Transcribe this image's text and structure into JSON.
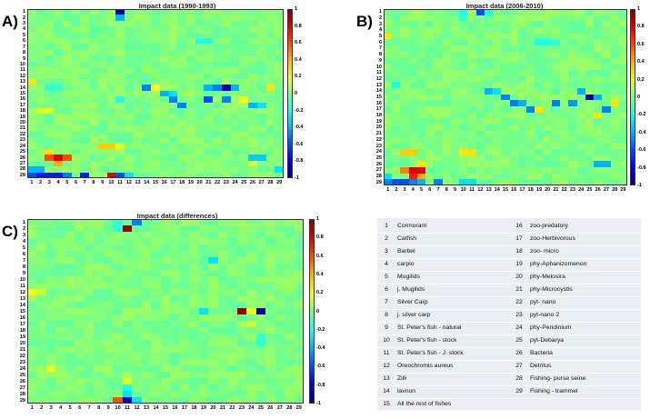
{
  "chart_data": [
    {
      "type": "heatmap",
      "panel_letter": "A)",
      "title": "Impact data (1990-1993)",
      "x_ticks": [
        "1",
        "2",
        "3",
        "4",
        "5",
        "6",
        "7",
        "8",
        "9",
        "10",
        "11",
        "12",
        "13",
        "14",
        "15",
        "16",
        "17",
        "18",
        "19",
        "20",
        "21",
        "22",
        "23",
        "24",
        "25",
        "26",
        "27",
        "28",
        "29"
      ],
      "y_ticks": [
        "1",
        "2",
        "3",
        "4",
        "5",
        "6",
        "7",
        "8",
        "9",
        "10",
        "11",
        "12",
        "13",
        "14",
        "15",
        "16",
        "17",
        "18",
        "19",
        "20",
        "21",
        "22",
        "23",
        "24",
        "25",
        "26",
        "27",
        "28",
        "29"
      ],
      "colorbar_ticks": [
        "1",
        "0.8",
        "0.6",
        "0.4",
        "0.2",
        "0",
        "-0.2",
        "-0.4",
        "-0.6",
        "-0.8",
        "-1"
      ],
      "zlim": [
        -1,
        1
      ],
      "background_value": 0,
      "cells": [
        {
          "row": 1,
          "col": 11,
          "value": -0.9
        },
        {
          "row": 2,
          "col": 11,
          "value": -0.4
        },
        {
          "row": 6,
          "col": 20,
          "value": -0.2
        },
        {
          "row": 6,
          "col": 21,
          "value": -0.2
        },
        {
          "row": 13,
          "col": 1,
          "value": 0.3
        },
        {
          "row": 14,
          "col": 3,
          "value": -0.15
        },
        {
          "row": 14,
          "col": 4,
          "value": -0.15
        },
        {
          "row": 14,
          "col": 14,
          "value": -0.5
        },
        {
          "row": 14,
          "col": 15,
          "value": 0.25
        },
        {
          "row": 14,
          "col": 21,
          "value": -0.4
        },
        {
          "row": 14,
          "col": 22,
          "value": -0.5
        },
        {
          "row": 14,
          "col": 23,
          "value": -0.9
        },
        {
          "row": 14,
          "col": 24,
          "value": -0.4
        },
        {
          "row": 14,
          "col": 28,
          "value": 0.3
        },
        {
          "row": 15,
          "col": 16,
          "value": -0.4
        },
        {
          "row": 15,
          "col": 17,
          "value": -0.3
        },
        {
          "row": 16,
          "col": 11,
          "value": -0.2
        },
        {
          "row": 16,
          "col": 17,
          "value": -0.5
        },
        {
          "row": 16,
          "col": 21,
          "value": -0.6
        },
        {
          "row": 16,
          "col": 23,
          "value": -0.5
        },
        {
          "row": 16,
          "col": 25,
          "value": 0.25
        },
        {
          "row": 17,
          "col": 18,
          "value": -0.5
        },
        {
          "row": 17,
          "col": 26,
          "value": -0.4
        },
        {
          "row": 17,
          "col": 27,
          "value": -0.3
        },
        {
          "row": 18,
          "col": 2,
          "value": 0.2
        },
        {
          "row": 18,
          "col": 3,
          "value": 0.2
        },
        {
          "row": 24,
          "col": 9,
          "value": 0.35
        },
        {
          "row": 24,
          "col": 10,
          "value": 0.35
        },
        {
          "row": 24,
          "col": 11,
          "value": 0.2
        },
        {
          "row": 25,
          "col": 3,
          "value": 0.3
        },
        {
          "row": 26,
          "col": 3,
          "value": 0.6
        },
        {
          "row": 26,
          "col": 4,
          "value": 0.8
        },
        {
          "row": 26,
          "col": 5,
          "value": 0.6
        },
        {
          "row": 26,
          "col": 26,
          "value": -0.35
        },
        {
          "row": 26,
          "col": 27,
          "value": -0.35
        },
        {
          "row": 27,
          "col": 4,
          "value": 0.4
        },
        {
          "row": 27,
          "col": 26,
          "value": 0.2
        },
        {
          "row": 28,
          "col": 1,
          "value": -0.4
        },
        {
          "row": 28,
          "col": 2,
          "value": -0.4
        },
        {
          "row": 28,
          "col": 29,
          "value": -0.3
        },
        {
          "row": 29,
          "col": 1,
          "value": -0.6
        },
        {
          "row": 29,
          "col": 2,
          "value": -0.7
        },
        {
          "row": 29,
          "col": 3,
          "value": -0.7
        },
        {
          "row": 29,
          "col": 4,
          "value": -0.7
        },
        {
          "row": 29,
          "col": 5,
          "value": -0.5
        },
        {
          "row": 29,
          "col": 7,
          "value": -0.7
        },
        {
          "row": 29,
          "col": 10,
          "value": 0.8
        },
        {
          "row": 29,
          "col": 11,
          "value": -0.6
        },
        {
          "row": 29,
          "col": 12,
          "value": -0.3
        }
      ]
    },
    {
      "type": "heatmap",
      "panel_letter": "B)",
      "title": "Impact data (2006-2010)",
      "x_ticks": [
        "1",
        "2",
        "3",
        "4",
        "5",
        "6",
        "7",
        "8",
        "9",
        "10",
        "11",
        "12",
        "13",
        "14",
        "15",
        "16",
        "17",
        "18",
        "19",
        "20",
        "21",
        "22",
        "23",
        "24",
        "25",
        "26",
        "27",
        "28",
        "29"
      ],
      "y_ticks": [
        "1",
        "2",
        "3",
        "4",
        "5",
        "6",
        "7",
        "8",
        "9",
        "10",
        "11",
        "12",
        "13",
        "14",
        "15",
        "16",
        "17",
        "18",
        "19",
        "20",
        "21",
        "22",
        "23",
        "24",
        "25",
        "26",
        "27",
        "28",
        "29"
      ],
      "colorbar_ticks": [
        "1",
        "0.8",
        "0.6",
        "0.4",
        "0.2",
        "0",
        "-0.2",
        "-0.4",
        "-0.6",
        "-0.8",
        "-1"
      ],
      "zlim": [
        -1,
        1
      ],
      "background_value": 0,
      "cells": [
        {
          "row": 1,
          "col": 10,
          "value": -0.2
        },
        {
          "row": 1,
          "col": 12,
          "value": -0.6
        },
        {
          "row": 1,
          "col": 13,
          "value": -0.2
        },
        {
          "row": 2,
          "col": 10,
          "value": -0.15
        },
        {
          "row": 5,
          "col": 1,
          "value": 0.3
        },
        {
          "row": 6,
          "col": 19,
          "value": -0.2
        },
        {
          "row": 6,
          "col": 20,
          "value": -0.2
        },
        {
          "row": 6,
          "col": 21,
          "value": -0.15
        },
        {
          "row": 13,
          "col": 2,
          "value": -0.2
        },
        {
          "row": 14,
          "col": 13,
          "value": -0.4
        },
        {
          "row": 14,
          "col": 14,
          "value": -0.3
        },
        {
          "row": 14,
          "col": 24,
          "value": -0.4
        },
        {
          "row": 15,
          "col": 15,
          "value": -0.5
        },
        {
          "row": 15,
          "col": 25,
          "value": -0.9
        },
        {
          "row": 15,
          "col": 26,
          "value": -0.4
        },
        {
          "row": 16,
          "col": 16,
          "value": -0.5
        },
        {
          "row": 16,
          "col": 17,
          "value": -0.4
        },
        {
          "row": 16,
          "col": 21,
          "value": -0.5
        },
        {
          "row": 16,
          "col": 23,
          "value": -0.45
        },
        {
          "row": 16,
          "col": 28,
          "value": 0.3
        },
        {
          "row": 17,
          "col": 18,
          "value": -0.5
        },
        {
          "row": 17,
          "col": 19,
          "value": 0.3
        },
        {
          "row": 17,
          "col": 27,
          "value": -0.5
        },
        {
          "row": 18,
          "col": 26,
          "value": 0.3
        },
        {
          "row": 24,
          "col": 3,
          "value": 0.35
        },
        {
          "row": 24,
          "col": 4,
          "value": 0.35
        },
        {
          "row": 24,
          "col": 10,
          "value": 0.3
        },
        {
          "row": 24,
          "col": 11,
          "value": 0.3
        },
        {
          "row": 26,
          "col": 5,
          "value": 0.3
        },
        {
          "row": 26,
          "col": 26,
          "value": -0.4
        },
        {
          "row": 26,
          "col": 27,
          "value": -0.4
        },
        {
          "row": 27,
          "col": 4,
          "value": 0.8
        },
        {
          "row": 27,
          "col": 5,
          "value": 0.8
        },
        {
          "row": 27,
          "col": 3,
          "value": 0.5
        },
        {
          "row": 28,
          "col": 4,
          "value": 0.7
        },
        {
          "row": 28,
          "col": 5,
          "value": 0.4
        },
        {
          "row": 28,
          "col": 1,
          "value": -0.3
        },
        {
          "row": 29,
          "col": 1,
          "value": -0.5
        },
        {
          "row": 29,
          "col": 2,
          "value": -0.6
        },
        {
          "row": 29,
          "col": 3,
          "value": -0.6
        },
        {
          "row": 29,
          "col": 4,
          "value": -0.5
        },
        {
          "row": 29,
          "col": 5,
          "value": -0.4
        },
        {
          "row": 29,
          "col": 7,
          "value": -0.5
        },
        {
          "row": 29,
          "col": 10,
          "value": -0.3
        },
        {
          "row": 29,
          "col": 11,
          "value": -0.3
        }
      ]
    },
    {
      "type": "heatmap",
      "panel_letter": "C)",
      "title": "Impact data (differences)",
      "x_ticks": [
        "1",
        "2",
        "3",
        "4",
        "5",
        "6",
        "7",
        "8",
        "9",
        "10",
        "11",
        "12",
        "13",
        "14",
        "15",
        "16",
        "17",
        "18",
        "19",
        "20",
        "21",
        "22",
        "23",
        "24",
        "25",
        "26",
        "27",
        "28",
        "29"
      ],
      "y_ticks": [
        "1",
        "2",
        "3",
        "4",
        "5",
        "6",
        "7",
        "8",
        "9",
        "10",
        "11",
        "12",
        "13",
        "14",
        "15",
        "16",
        "17",
        "18",
        "19",
        "20",
        "21",
        "22",
        "23",
        "24",
        "25",
        "26",
        "27",
        "28",
        "29"
      ],
      "colorbar_ticks": [
        "1",
        "0.8",
        "0.6",
        "0.4",
        "0.2",
        "0",
        "-0.2",
        "-0.4",
        "-0.6",
        "-0.8",
        "-1"
      ],
      "zlim": [
        -1,
        1
      ],
      "background_value": 0,
      "cells": [
        {
          "row": 1,
          "col": 10,
          "value": -0.15
        },
        {
          "row": 1,
          "col": 12,
          "value": -0.5
        },
        {
          "row": 2,
          "col": 10,
          "value": -0.15
        },
        {
          "row": 2,
          "col": 11,
          "value": 0.95
        },
        {
          "row": 7,
          "col": 20,
          "value": -0.3
        },
        {
          "row": 12,
          "col": 1,
          "value": 0.25
        },
        {
          "row": 12,
          "col": 2,
          "value": 0.15
        },
        {
          "row": 15,
          "col": 19,
          "value": -0.3
        },
        {
          "row": 15,
          "col": 23,
          "value": 0.95
        },
        {
          "row": 15,
          "col": 25,
          "value": -0.95
        },
        {
          "row": 15,
          "col": 24,
          "value": 0.2
        },
        {
          "row": 17,
          "col": 24,
          "value": 0.15
        },
        {
          "row": 19,
          "col": 25,
          "value": -0.15
        },
        {
          "row": 20,
          "col": 25,
          "value": -0.15
        },
        {
          "row": 24,
          "col": 3,
          "value": 0.2
        },
        {
          "row": 26,
          "col": 11,
          "value": 0.2
        },
        {
          "row": 27,
          "col": 11,
          "value": -0.2
        },
        {
          "row": 28,
          "col": 11,
          "value": -0.3
        },
        {
          "row": 29,
          "col": 10,
          "value": 0.6
        },
        {
          "row": 29,
          "col": 11,
          "value": -0.9
        },
        {
          "row": 29,
          "col": 12,
          "value": -0.3
        }
      ]
    }
  ],
  "legend": {
    "left": [
      {
        "num": "1",
        "name": "Cormorant"
      },
      {
        "num": "2",
        "name": "Catfish"
      },
      {
        "num": "3",
        "name": "Barbel"
      },
      {
        "num": "4",
        "name": "carpio"
      },
      {
        "num": "5",
        "name": "Mugilids"
      },
      {
        "num": "6",
        "name": "j. Mugilids"
      },
      {
        "num": "7",
        "name": "Silver Carp"
      },
      {
        "num": "8",
        "name": "j. silver carp"
      },
      {
        "num": "9",
        "name": "St. Peter's fish - natural"
      },
      {
        "num": "10",
        "name": "St. Peter's fish -  stock"
      },
      {
        "num": "11",
        "name": "St. Peter's fish -  J. stock"
      },
      {
        "num": "12",
        "name": "Oreochromis aureus"
      },
      {
        "num": "13",
        "name": "Zilli"
      },
      {
        "num": "14",
        "name": "lavnun"
      },
      {
        "num": "15",
        "name": "All the rest of fishes"
      }
    ],
    "right": [
      {
        "num": "16",
        "name": "zoo-predatory"
      },
      {
        "num": "17",
        "name": "zoo-Herbivorous"
      },
      {
        "num": "18",
        "name": "zoo- micro"
      },
      {
        "num": "19",
        "name": "phy-Aphanizomenon"
      },
      {
        "num": "20",
        "name": "phy-Melosira"
      },
      {
        "num": "21",
        "name": "phy-Microcystis"
      },
      {
        "num": "22",
        "name": "pyt- nano"
      },
      {
        "num": "23",
        "name": "pyt-nano 2"
      },
      {
        "num": "24",
        "name": "phy-Peridinium"
      },
      {
        "num": "25",
        "name": "pyt-Debarya"
      },
      {
        "num": "26",
        "name": "Bacteria"
      },
      {
        "num": "27",
        "name": "Detritus"
      },
      {
        "num": "28",
        "name": "Fishing- purse seine"
      },
      {
        "num": "29",
        "name": "Fishing - trammel"
      }
    ]
  }
}
